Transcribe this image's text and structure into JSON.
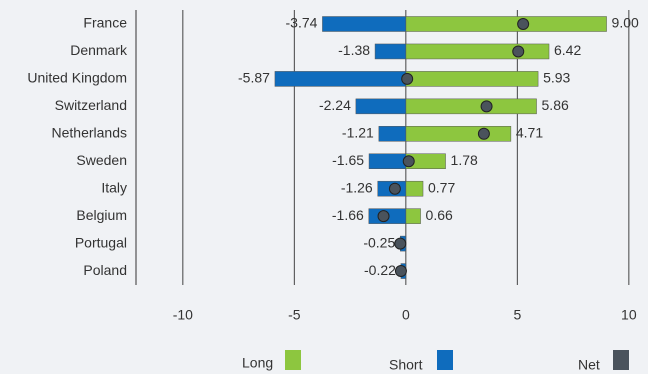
{
  "chart_data": {
    "type": "bar",
    "categories": [
      "France",
      "Denmark",
      "United Kingdom",
      "Switzerland",
      "Netherlands",
      "Sweden",
      "Italy",
      "Belgium",
      "Portugal",
      "Poland"
    ],
    "series": [
      {
        "name": "Long",
        "color": "#8dc63f",
        "values": [
          9.0,
          6.42,
          5.93,
          5.86,
          4.71,
          1.78,
          0.77,
          0.66,
          null,
          null
        ],
        "value_labels": [
          "9.00",
          "6.42",
          "5.93",
          "5.86",
          "4.71",
          "1.78",
          "0.77",
          "0.66",
          null,
          null
        ]
      },
      {
        "name": "Short",
        "color": "#0f6cbd",
        "values": [
          -3.74,
          -1.38,
          -5.87,
          -2.24,
          -1.21,
          -1.65,
          -1.26,
          -1.66,
          -0.25,
          -0.22
        ]
      },
      {
        "name": "Net",
        "color": "#4a535c",
        "values": [
          5.26,
          5.04,
          0.06,
          3.62,
          3.5,
          0.13,
          -0.49,
          -1.0,
          -0.25,
          -0.22
        ]
      }
    ],
    "xlim": [
      -12.1,
      10.5
    ],
    "xticks": [
      -10,
      -5,
      0,
      5,
      10
    ],
    "grid": true
  }
}
